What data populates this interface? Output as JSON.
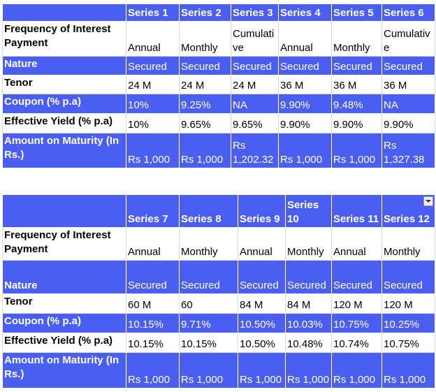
{
  "tables": [
    {
      "columns": [
        "Series 1",
        "Series 2",
        "Series 3",
        "Series 4",
        "Series 5",
        "Series 6"
      ],
      "rows": [
        {
          "label": "Frequency of Interest Payment",
          "values": [
            "Annual",
            "Monthly",
            "Cumulative",
            "Annual",
            "Monthly",
            "Cumulative"
          ]
        },
        {
          "label": "Nature",
          "values": [
            "Secured",
            "Secured",
            "Secured",
            "Secured",
            "Secured",
            "Secured"
          ]
        },
        {
          "label": "Tenor",
          "values": [
            "24 M",
            "24 M",
            "24 M",
            "36 M",
            "36 M",
            "36 M"
          ]
        },
        {
          "label": "Coupon (% p.a)",
          "values": [
            "10%",
            "9.25%",
            "NA",
            "9.90%",
            "9.48%",
            "NA"
          ]
        },
        {
          "label": "Effective Yield (% p.a)",
          "values": [
            "10%",
            "9.65%",
            "9.65%",
            "9.90%",
            "9.90%",
            "9.90%"
          ]
        },
        {
          "label": "Amount on Maturity (In Rs.)",
          "values": [
            "Rs 1,000",
            "Rs 1,000",
            "Rs 1,202.32",
            "Rs 1,000",
            "Rs 1,000",
            "Rs 1,327.38"
          ]
        }
      ]
    },
    {
      "columns": [
        "Series 7",
        "Series 8",
        "Series 9",
        "Series 10",
        "Series 11",
        "Series 12"
      ],
      "rows": [
        {
          "label": "Frequency of Interest Payment",
          "values": [
            "Annual",
            "Monthly",
            "Annual",
            "Monthly",
            "Annual",
            "Monthly"
          ]
        },
        {
          "label": "Nature",
          "values": [
            "Secured",
            "Secured",
            "Secured",
            "Secured",
            "Secured",
            "Secured"
          ]
        },
        {
          "label": "Tenor",
          "values": [
            "60 M",
            "60",
            "84 M",
            "84 M",
            "120 M",
            "120 M"
          ]
        },
        {
          "label": "Coupon (% p.a)",
          "values": [
            "10.15%",
            "9.71%",
            "10.50%",
            "10.03%",
            "10.75%",
            "10.25%"
          ]
        },
        {
          "label": "Effective Yield (% p.a)",
          "values": [
            "10.15%",
            "10.15%",
            "10.50%",
            "10.48%",
            "10.74%",
            "10.75%"
          ]
        },
        {
          "label": "Amount on Maturity (In Rs.)",
          "values": [
            "Rs 1,000",
            "Rs 1,000",
            "Rs 1,000",
            "Rs 1,000",
            "Rs 1,000",
            "Rs 1,000"
          ]
        }
      ]
    }
  ]
}
